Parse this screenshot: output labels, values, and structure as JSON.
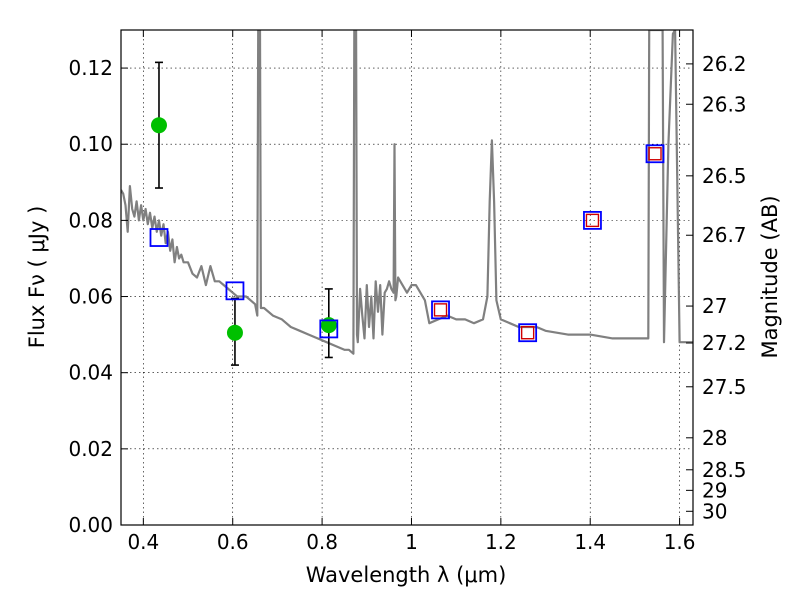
{
  "chart_data": {
    "type": "scatter",
    "xlabel": "Wavelength  λ (μm)",
    "ylabel": "Flux  Fν  ( μJy )",
    "ylabel_right": "Magnitude (AB)",
    "xlim": [
      0.35,
      1.63
    ],
    "ylim": [
      0.0,
      0.13
    ],
    "grid": true,
    "x_ticks": [
      {
        "v": 0.4,
        "label": "0.4"
      },
      {
        "v": 0.6,
        "label": "0.6"
      },
      {
        "v": 0.8,
        "label": "0.8"
      },
      {
        "v": 1.0,
        "label": "1"
      },
      {
        "v": 1.2,
        "label": "1.2"
      },
      {
        "v": 1.4,
        "label": "1.4"
      },
      {
        "v": 1.6,
        "label": "1.6"
      }
    ],
    "y_ticks": [
      {
        "v": 0.0,
        "label": "0.00"
      },
      {
        "v": 0.02,
        "label": "0.02"
      },
      {
        "v": 0.04,
        "label": "0.04"
      },
      {
        "v": 0.06,
        "label": "0.06"
      },
      {
        "v": 0.08,
        "label": "0.08"
      },
      {
        "v": 0.1,
        "label": "0.10"
      },
      {
        "v": 0.12,
        "label": "0.12"
      }
    ],
    "mag_ticks": [
      {
        "flux": 0.1211,
        "label": "26.2"
      },
      {
        "flux": 0.1105,
        "label": "26.3"
      },
      {
        "flux": 0.0917,
        "label": "26.5"
      },
      {
        "flux": 0.0761,
        "label": "26.7"
      },
      {
        "flux": 0.0575,
        "label": "27"
      },
      {
        "flux": 0.0478,
        "label": "27.2"
      },
      {
        "flux": 0.0363,
        "label": "27.5"
      },
      {
        "flux": 0.0229,
        "label": "28"
      },
      {
        "flux": 0.0145,
        "label": "28.5"
      },
      {
        "flux": 0.0091,
        "label": "29"
      },
      {
        "flux": 0.0036,
        "label": "30"
      }
    ],
    "series": [
      {
        "kind": "line",
        "color": "#808080",
        "x": [
          0.35,
          0.355,
          0.36,
          0.365,
          0.37,
          0.375,
          0.38,
          0.385,
          0.39,
          0.395,
          0.4,
          0.405,
          0.41,
          0.415,
          0.42,
          0.425,
          0.43,
          0.435,
          0.44,
          0.445,
          0.45,
          0.455,
          0.46,
          0.465,
          0.47,
          0.475,
          0.48,
          0.485,
          0.49,
          0.5,
          0.51,
          0.52,
          0.53,
          0.54,
          0.55,
          0.56,
          0.57,
          0.58,
          0.59,
          0.6,
          0.61,
          0.62,
          0.63,
          0.64,
          0.65,
          0.655,
          0.657,
          0.659,
          0.661,
          0.663,
          0.67,
          0.69,
          0.71,
          0.73,
          0.75,
          0.77,
          0.79,
          0.81,
          0.83,
          0.85,
          0.86,
          0.87,
          0.872,
          0.874,
          0.876,
          0.878,
          0.88,
          0.885,
          0.89,
          0.895,
          0.9,
          0.905,
          0.91,
          0.915,
          0.92,
          0.925,
          0.93,
          0.935,
          0.94,
          0.945,
          0.95,
          0.955,
          0.96,
          0.962,
          0.964,
          0.966,
          0.97,
          0.98,
          0.99,
          1.0,
          1.01,
          1.02,
          1.03,
          1.04,
          1.06,
          1.08,
          1.1,
          1.12,
          1.14,
          1.16,
          1.17,
          1.175,
          1.18,
          1.185,
          1.19,
          1.2,
          1.22,
          1.24,
          1.26,
          1.28,
          1.3,
          1.35,
          1.4,
          1.45,
          1.5,
          1.53,
          1.532,
          1.535,
          1.545,
          1.55,
          1.555,
          1.56,
          1.562,
          1.565,
          1.575,
          1.585,
          1.59,
          1.6,
          1.63
        ],
        "y": [
          0.088,
          0.087,
          0.084,
          0.077,
          0.089,
          0.083,
          0.081,
          0.085,
          0.08,
          0.084,
          0.08,
          0.083,
          0.079,
          0.082,
          0.078,
          0.081,
          0.077,
          0.08,
          0.076,
          0.079,
          0.074,
          0.077,
          0.072,
          0.075,
          0.069,
          0.073,
          0.07,
          0.071,
          0.069,
          0.069,
          0.066,
          0.065,
          0.068,
          0.063,
          0.068,
          0.064,
          0.064,
          0.063,
          0.062,
          0.061,
          0.06,
          0.06,
          0.06,
          0.059,
          0.058,
          0.055,
          0.13,
          0.13,
          0.13,
          0.057,
          0.057,
          0.055,
          0.054,
          0.052,
          0.051,
          0.05,
          0.049,
          0.048,
          0.047,
          0.046,
          0.046,
          0.045,
          0.13,
          0.13,
          0.13,
          0.05,
          0.048,
          0.062,
          0.055,
          0.049,
          0.063,
          0.052,
          0.06,
          0.049,
          0.064,
          0.056,
          0.063,
          0.05,
          0.061,
          0.062,
          0.064,
          0.062,
          0.061,
          0.1,
          0.059,
          0.06,
          0.065,
          0.063,
          0.061,
          0.063,
          0.063,
          0.061,
          0.059,
          0.053,
          0.054,
          0.055,
          0.054,
          0.054,
          0.053,
          0.054,
          0.06,
          0.085,
          0.101,
          0.085,
          0.059,
          0.054,
          0.053,
          0.052,
          0.052,
          0.052,
          0.051,
          0.05,
          0.05,
          0.049,
          0.049,
          0.049,
          0.13,
          0.13,
          0.13,
          0.13,
          0.13,
          0.13,
          0.13,
          0.048,
          0.1,
          0.129,
          0.13,
          0.048,
          0.048
        ],
        "comment": "model spectrum"
      },
      {
        "kind": "points",
        "color": "#00c000",
        "x": [
          0.435,
          0.605,
          0.815
        ],
        "y": [
          0.105,
          0.0505,
          0.0525
        ],
        "yerr_low": [
          0.0885,
          0.042,
          0.044
        ],
        "yerr_high": [
          0.1215,
          0.0595,
          0.062
        ]
      },
      {
        "kind": "squares",
        "color": "#0000ff",
        "x": [
          0.435,
          0.605,
          0.815,
          1.065,
          1.26,
          1.405,
          1.545
        ],
        "y": [
          0.0755,
          0.0615,
          0.0515,
          0.0565,
          0.0505,
          0.08,
          0.0975
        ]
      },
      {
        "kind": "squares",
        "color": "#d00000",
        "x": [
          1.065,
          1.26,
          1.405,
          1.545
        ],
        "y": [
          0.0565,
          0.0505,
          0.08,
          0.0975
        ]
      }
    ]
  }
}
